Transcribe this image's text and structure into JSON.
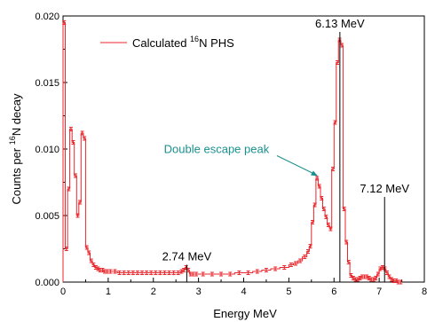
{
  "chart_data": {
    "type": "line",
    "title": "",
    "xlabel": "Energy MeV",
    "ylabel": {
      "prefix": "Counts per ",
      "sup": "16",
      "suffix": "N decay"
    },
    "xlim": [
      0,
      8
    ],
    "ylim": [
      0,
      0.02
    ],
    "x_ticks": [
      "0",
      "1",
      "2",
      "3",
      "4",
      "5",
      "6",
      "7",
      "8"
    ],
    "y_ticks": [
      "0.000",
      "0.005",
      "0.010",
      "0.015",
      "0.020"
    ],
    "legend": {
      "position": "top-left",
      "prefix": "Calculated ",
      "sup": "16",
      "suffix": "N PHS"
    },
    "colors": {
      "series": "#e8262b",
      "teal": "#1a8f8f",
      "axis": "#000000"
    },
    "series": [
      {
        "step_width": 0.05,
        "x": [
          0.0,
          0.05,
          0.1,
          0.15,
          0.2,
          0.25,
          0.3,
          0.35,
          0.4,
          0.45,
          0.5,
          0.55,
          0.6,
          0.65,
          0.7,
          0.75,
          0.8,
          0.85,
          0.9,
          0.95,
          1.0,
          1.1,
          1.2,
          1.3,
          1.4,
          1.5,
          1.6,
          1.7,
          1.8,
          1.9,
          2.0,
          2.1,
          2.2,
          2.3,
          2.4,
          2.5,
          2.6,
          2.65,
          2.7,
          2.75,
          2.8,
          2.85,
          2.9,
          3.0,
          3.2,
          3.4,
          3.6,
          3.8,
          4.0,
          4.2,
          4.4,
          4.6,
          4.8,
          5.0,
          5.1,
          5.2,
          5.3,
          5.4,
          5.45,
          5.5,
          5.55,
          5.6,
          5.65,
          5.7,
          5.75,
          5.8,
          5.85,
          5.9,
          5.95,
          6.0,
          6.05,
          6.1,
          6.15,
          6.2,
          6.25,
          6.3,
          6.35,
          6.4,
          6.45,
          6.5,
          6.55,
          6.6,
          6.65,
          6.7,
          6.75,
          6.8,
          6.85,
          6.9,
          6.95,
          7.0,
          7.05,
          7.1,
          7.15,
          7.2,
          7.25,
          7.3,
          7.35,
          7.4,
          7.45
        ],
        "y": [
          0.0195,
          0.0025,
          0.007,
          0.0115,
          0.0105,
          0.008,
          0.005,
          0.006,
          0.0112,
          0.0108,
          0.0026,
          0.0022,
          0.0016,
          0.0013,
          0.0011,
          0.001,
          0.0009,
          0.0009,
          0.0008,
          0.0008,
          0.0008,
          0.0008,
          0.0007,
          0.0007,
          0.0007,
          0.0007,
          0.0007,
          0.0007,
          0.0007,
          0.0007,
          0.0007,
          0.0007,
          0.0007,
          0.0007,
          0.0007,
          0.0007,
          0.0008,
          0.0009,
          0.0011,
          0.0009,
          0.0006,
          0.0006,
          0.0006,
          0.0006,
          0.0006,
          0.0006,
          0.0006,
          0.0007,
          0.0007,
          0.0008,
          0.0009,
          0.001,
          0.0011,
          0.0013,
          0.0014,
          0.0016,
          0.0019,
          0.0023,
          0.0027,
          0.0045,
          0.0058,
          0.0078,
          0.0072,
          0.0063,
          0.0055,
          0.0049,
          0.0043,
          0.004,
          0.0085,
          0.012,
          0.0165,
          0.0182,
          0.0178,
          0.0055,
          0.003,
          0.0015,
          0.0005,
          0.0003,
          0.0002,
          0.0002,
          0.0003,
          0.0004,
          0.0004,
          0.0004,
          0.0003,
          0.0002,
          0.0002,
          0.0003,
          0.0006,
          0.001,
          0.0011,
          0.001,
          0.0007,
          0.0004,
          0.0002,
          0.0001,
          0.0001,
          0.0,
          0.0
        ]
      }
    ],
    "annotations": [
      {
        "text": "6.13 MeV",
        "x": 6.13,
        "y": 0.0188,
        "style": "black"
      },
      {
        "text": "7.12 MeV",
        "x": 7.12,
        "y": 0.0064,
        "style": "black"
      },
      {
        "text": "2.74 MeV",
        "x": 2.74,
        "y": 0.0013,
        "style": "black"
      },
      {
        "text": "Double escape peak",
        "x": 5.66,
        "y": 0.0079,
        "style": "teal"
      }
    ]
  }
}
